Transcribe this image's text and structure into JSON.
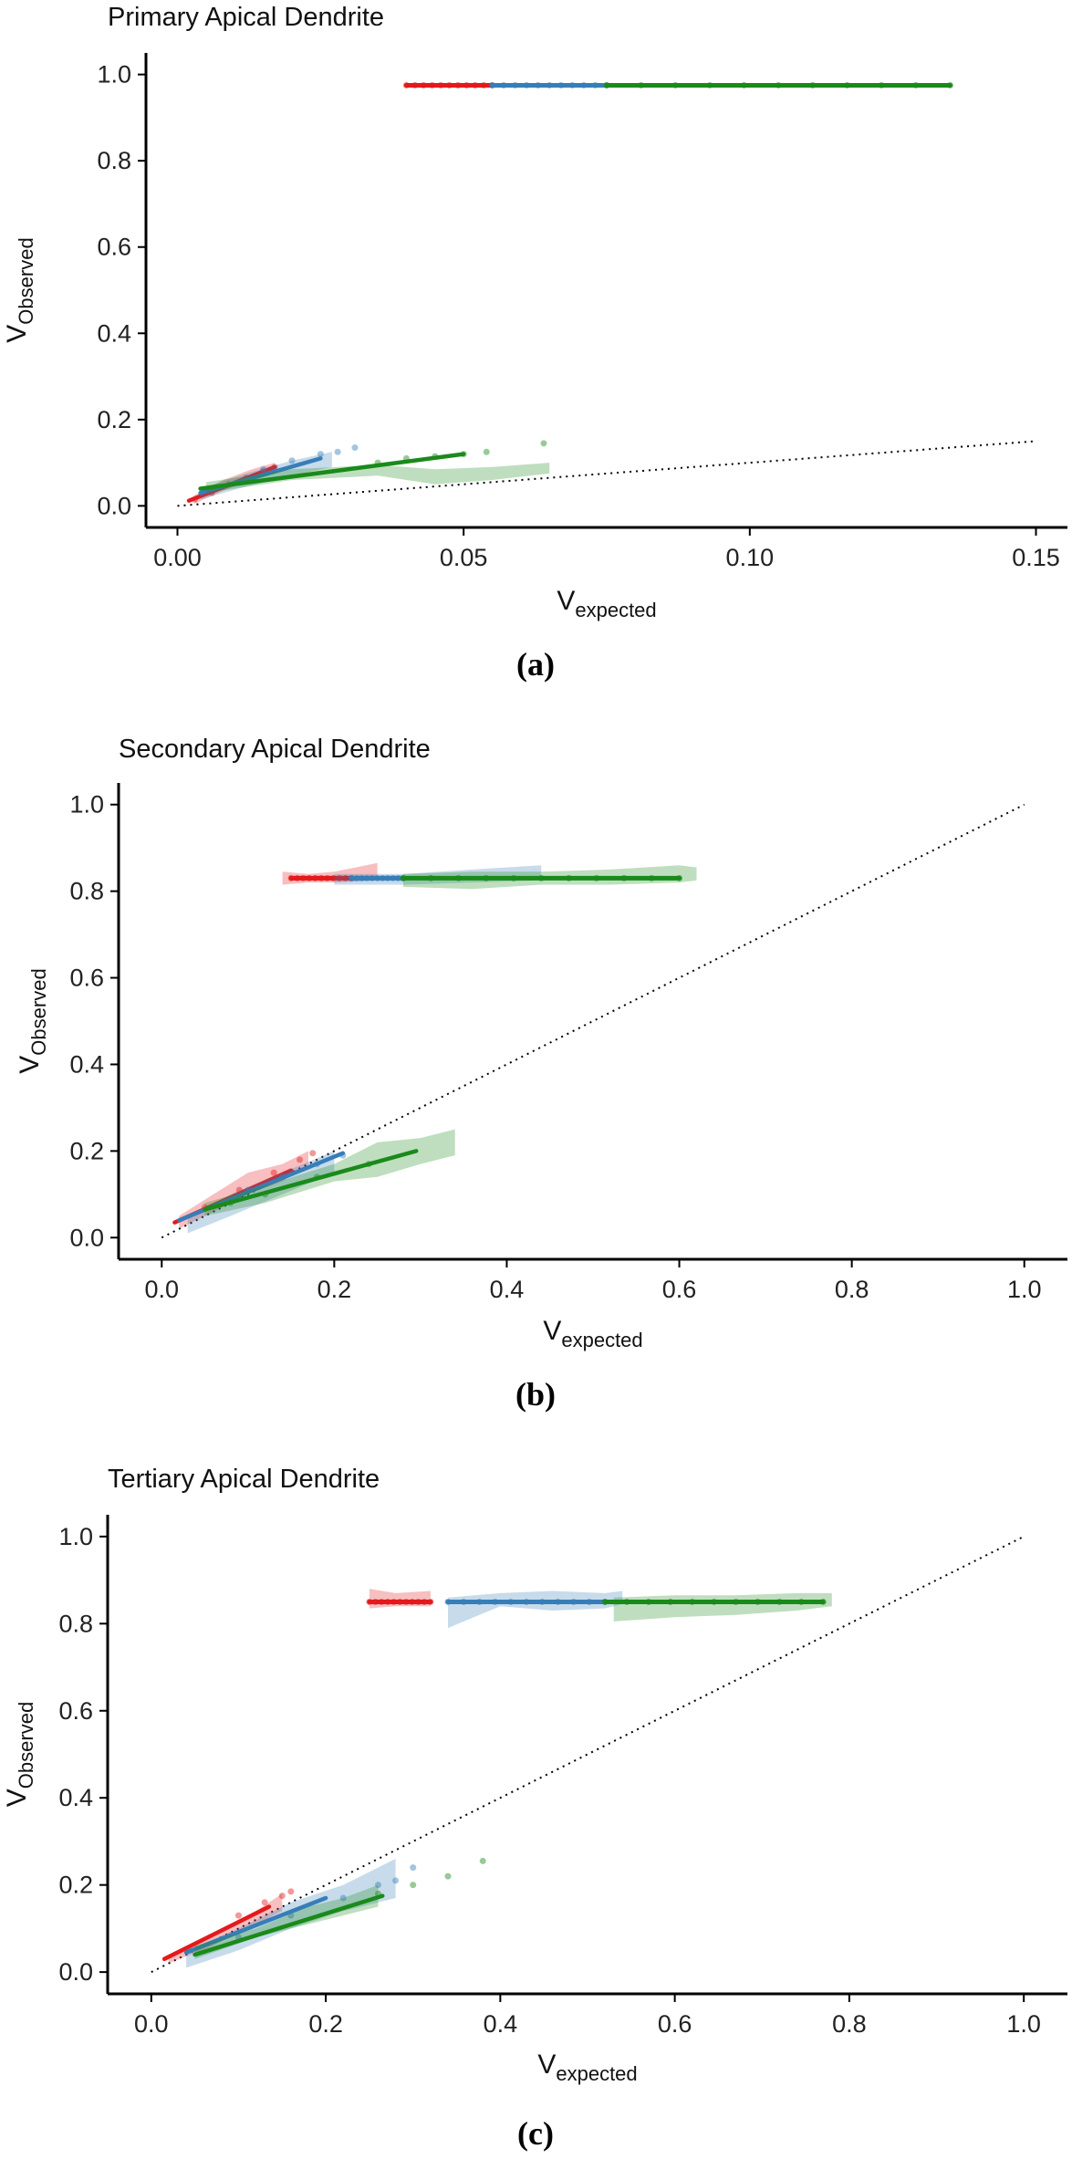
{
  "chart_data": [
    {
      "type": "scatter",
      "title": "Primary Apical Dendrite",
      "caption": "(a)",
      "xlabel_main": "V",
      "xlabel_sub": "expected",
      "ylabel_main": "V",
      "ylabel_sub": "Observed",
      "xlim": [
        -0.0055,
        0.1555
      ],
      "ylim": [
        -0.05,
        1.05
      ],
      "xticks": [
        0.0,
        0.05,
        0.1,
        0.15
      ],
      "xtick_labels": [
        "0.00",
        "0.05",
        "0.10",
        "0.15"
      ],
      "yticks": [
        0.0,
        0.2,
        0.4,
        0.6,
        0.8,
        1.0
      ],
      "ytick_labels": [
        "0.0",
        "0.2",
        "0.4",
        "0.6",
        "0.8",
        "1.0"
      ],
      "reference_line": {
        "x": [
          0.0,
          0.15
        ],
        "y": [
          0.0,
          0.15
        ],
        "style": "dotted"
      },
      "series": [
        {
          "name": "red",
          "color": "#e41a1c",
          "high_band": {
            "y": 0.975,
            "x_range": [
              0.04,
              0.055
            ]
          },
          "fit_line": {
            "x": [
              0.002,
              0.017
            ],
            "y": [
              0.012,
              0.09
            ]
          },
          "ribbon": {
            "x": [
              0.003,
              0.008,
              0.013,
              0.017
            ],
            "lower": [
              0.005,
              0.035,
              0.06,
              0.075
            ],
            "upper": [
              0.025,
              0.06,
              0.085,
              0.1
            ]
          },
          "points": {
            "x": [
              0.003,
              0.006,
              0.009,
              0.012,
              0.015,
              0.017
            ],
            "y": [
              0.015,
              0.03,
              0.05,
              0.065,
              0.08,
              0.09
            ]
          }
        },
        {
          "name": "blue",
          "color": "#377eb8",
          "high_band": {
            "y": 0.975,
            "x_range": [
              0.055,
              0.075
            ]
          },
          "fit_line": {
            "x": [
              0.004,
              0.025
            ],
            "y": [
              0.03,
              0.11
            ]
          },
          "ribbon": {
            "x": [
              0.004,
              0.012,
              0.02,
              0.027
            ],
            "lower": [
              0.015,
              0.045,
              0.07,
              0.09
            ],
            "upper": [
              0.04,
              0.075,
              0.105,
              0.125
            ]
          },
          "points": {
            "x": [
              0.015,
              0.02,
              0.025,
              0.028,
              0.031
            ],
            "y": [
              0.085,
              0.105,
              0.12,
              0.125,
              0.135
            ]
          }
        },
        {
          "name": "green",
          "color": "#1a8a1a",
          "high_band": {
            "y": 0.975,
            "x_range": [
              0.075,
              0.135
            ]
          },
          "fit_line": {
            "x": [
              0.004,
              0.05
            ],
            "y": [
              0.04,
              0.12
            ]
          },
          "ribbon": {
            "x": [
              0.005,
              0.02,
              0.035,
              0.045,
              0.055,
              0.065
            ],
            "lower": [
              0.03,
              0.06,
              0.07,
              0.05,
              0.06,
              0.075
            ],
            "upper": [
              0.055,
              0.085,
              0.095,
              0.085,
              0.09,
              0.1
            ]
          },
          "points": {
            "x": [
              0.035,
              0.04,
              0.045,
              0.05,
              0.054,
              0.064
            ],
            "y": [
              0.1,
              0.11,
              0.115,
              0.12,
              0.125,
              0.145
            ]
          }
        }
      ]
    },
    {
      "type": "scatter",
      "title": "Secondary Apical Dendrite",
      "caption": "(b)",
      "xlabel_main": "V",
      "xlabel_sub": "expected",
      "ylabel_main": "V",
      "ylabel_sub": "Observed",
      "xlim": [
        -0.05,
        1.05
      ],
      "ylim": [
        -0.05,
        1.05
      ],
      "xticks": [
        0.0,
        0.2,
        0.4,
        0.6,
        0.8,
        1.0
      ],
      "xtick_labels": [
        "0.0",
        "0.2",
        "0.4",
        "0.6",
        "0.8",
        "1.0"
      ],
      "yticks": [
        0.0,
        0.2,
        0.4,
        0.6,
        0.8,
        1.0
      ],
      "ytick_labels": [
        "0.0",
        "0.2",
        "0.4",
        "0.6",
        "0.8",
        "1.0"
      ],
      "reference_line": {
        "x": [
          0.0,
          1.0
        ],
        "y": [
          0.0,
          1.0
        ],
        "style": "dotted"
      },
      "series": [
        {
          "name": "red",
          "color": "#e41a1c",
          "high_band": {
            "y": 0.83,
            "x_range": [
              0.15,
              0.22
            ]
          },
          "high_ribbon": {
            "x": [
              0.14,
              0.17,
              0.2,
              0.25
            ],
            "lower": [
              0.815,
              0.82,
              0.82,
              0.825
            ],
            "upper": [
              0.845,
              0.84,
              0.845,
              0.865
            ]
          },
          "fit_line": {
            "x": [
              0.015,
              0.15
            ],
            "y": [
              0.035,
              0.155
            ]
          },
          "ribbon": {
            "x": [
              0.02,
              0.06,
              0.1,
              0.14,
              0.17
            ],
            "lower": [
              0.02,
              0.06,
              0.1,
              0.13,
              0.17
            ],
            "upper": [
              0.05,
              0.1,
              0.15,
              0.17,
              0.2
            ]
          },
          "points": {
            "x": [
              0.05,
              0.09,
              0.13,
              0.16,
              0.175
            ],
            "y": [
              0.07,
              0.11,
              0.15,
              0.18,
              0.195
            ]
          }
        },
        {
          "name": "blue",
          "color": "#377eb8",
          "high_band": {
            "y": 0.83,
            "x_range": [
              0.22,
              0.28
            ]
          },
          "high_ribbon": {
            "x": [
              0.2,
              0.28,
              0.36,
              0.44
            ],
            "lower": [
              0.815,
              0.815,
              0.82,
              0.825
            ],
            "upper": [
              0.84,
              0.84,
              0.85,
              0.86
            ]
          },
          "fit_line": {
            "x": [
              0.02,
              0.21
            ],
            "y": [
              0.04,
              0.195
            ]
          },
          "ribbon": {
            "x": [
              0.03,
              0.08,
              0.14,
              0.2
            ],
            "lower": [
              0.01,
              0.05,
              0.1,
              0.15
            ],
            "upper": [
              0.05,
              0.1,
              0.15,
              0.2
            ]
          },
          "points": {
            "x": [
              0.1,
              0.14,
              0.18,
              0.21
            ],
            "y": [
              0.11,
              0.14,
              0.17,
              0.19
            ]
          }
        },
        {
          "name": "green",
          "color": "#1a8a1a",
          "high_band": {
            "y": 0.83,
            "x_range": [
              0.28,
              0.6
            ]
          },
          "high_ribbon": {
            "x": [
              0.28,
              0.36,
              0.44,
              0.52,
              0.6,
              0.62
            ],
            "lower": [
              0.81,
              0.805,
              0.815,
              0.815,
              0.82,
              0.825
            ],
            "upper": [
              0.84,
              0.845,
              0.845,
              0.85,
              0.86,
              0.855
            ]
          },
          "fit_line": {
            "x": [
              0.05,
              0.295
            ],
            "y": [
              0.065,
              0.2
            ]
          },
          "ribbon": {
            "x": [
              0.05,
              0.12,
              0.2,
              0.25,
              0.3,
              0.34
            ],
            "lower": [
              0.05,
              0.08,
              0.13,
              0.14,
              0.17,
              0.19
            ],
            "upper": [
              0.08,
              0.12,
              0.17,
              0.22,
              0.23,
              0.25
            ]
          },
          "points": {
            "x": [
              0.08,
              0.12,
              0.18,
              0.24
            ],
            "y": [
              0.08,
              0.1,
              0.14,
              0.17
            ]
          }
        }
      ]
    },
    {
      "type": "scatter",
      "title": "Tertiary Apical Dendrite",
      "caption": "(c)",
      "xlabel_main": "V",
      "xlabel_sub": "expected",
      "ylabel_main": "V",
      "ylabel_sub": "Observed",
      "xlim": [
        -0.05,
        1.05
      ],
      "ylim": [
        -0.05,
        1.05
      ],
      "xticks": [
        0.0,
        0.2,
        0.4,
        0.6,
        0.8,
        1.0
      ],
      "xtick_labels": [
        "0.0",
        "0.2",
        "0.4",
        "0.6",
        "0.8",
        "1.0"
      ],
      "yticks": [
        0.0,
        0.2,
        0.4,
        0.6,
        0.8,
        1.0
      ],
      "ytick_labels": [
        "0.0",
        "0.2",
        "0.4",
        "0.6",
        "0.8",
        "1.0"
      ],
      "reference_line": {
        "x": [
          0.0,
          1.0
        ],
        "y": [
          0.0,
          1.0
        ],
        "style": "dotted"
      },
      "series": [
        {
          "name": "red",
          "color": "#e41a1c",
          "high_band": {
            "y": 0.85,
            "x_range": [
              0.25,
              0.32
            ]
          },
          "high_ribbon": {
            "x": [
              0.25,
              0.28,
              0.32
            ],
            "lower": [
              0.835,
              0.84,
              0.84
            ],
            "upper": [
              0.88,
              0.87,
              0.875
            ]
          },
          "fit_line": {
            "x": [
              0.015,
              0.135
            ],
            "y": [
              0.03,
              0.15
            ]
          },
          "ribbon": {
            "x": [
              0.02,
              0.07,
              0.12,
              0.15
            ],
            "lower": [
              0.02,
              0.06,
              0.11,
              0.14
            ],
            "upper": [
              0.04,
              0.09,
              0.14,
              0.18
            ]
          },
          "points": {
            "x": [
              0.1,
              0.13,
              0.15,
              0.16
            ],
            "y": [
              0.13,
              0.16,
              0.175,
              0.185
            ]
          }
        },
        {
          "name": "blue",
          "color": "#377eb8",
          "high_band": {
            "y": 0.85,
            "x_range": [
              0.34,
              0.52
            ]
          },
          "high_ribbon": {
            "x": [
              0.34,
              0.4,
              0.46,
              0.52,
              0.54
            ],
            "lower": [
              0.79,
              0.84,
              0.83,
              0.835,
              0.845
            ],
            "upper": [
              0.86,
              0.87,
              0.875,
              0.87,
              0.875
            ]
          },
          "fit_line": {
            "x": [
              0.04,
              0.2
            ],
            "y": [
              0.045,
              0.17
            ]
          },
          "ribbon": {
            "x": [
              0.04,
              0.1,
              0.16,
              0.22,
              0.28
            ],
            "lower": [
              0.01,
              0.05,
              0.1,
              0.14,
              0.17
            ],
            "upper": [
              0.05,
              0.1,
              0.16,
              0.2,
              0.26
            ]
          },
          "points": {
            "x": [
              0.1,
              0.16,
              0.22,
              0.26,
              0.28,
              0.3
            ],
            "y": [
              0.08,
              0.13,
              0.17,
              0.2,
              0.21,
              0.24
            ]
          }
        },
        {
          "name": "green",
          "color": "#1a8a1a",
          "high_band": {
            "y": 0.85,
            "x_range": [
              0.52,
              0.77
            ]
          },
          "high_ribbon": {
            "x": [
              0.53,
              0.6,
              0.67,
              0.74,
              0.78
            ],
            "lower": [
              0.805,
              0.815,
              0.82,
              0.83,
              0.84
            ],
            "upper": [
              0.86,
              0.865,
              0.865,
              0.87,
              0.87
            ]
          },
          "fit_line": {
            "x": [
              0.05,
              0.265
            ],
            "y": [
              0.04,
              0.175
            ]
          },
          "ribbon": {
            "x": [
              0.05,
              0.12,
              0.18,
              0.22,
              0.26
            ],
            "lower": [
              0.03,
              0.08,
              0.11,
              0.13,
              0.15
            ],
            "upper": [
              0.06,
              0.1,
              0.15,
              0.17,
              0.2
            ]
          },
          "points": {
            "x": [
              0.26,
              0.3,
              0.34,
              0.38
            ],
            "y": [
              0.18,
              0.2,
              0.22,
              0.255
            ]
          }
        }
      ]
    }
  ]
}
